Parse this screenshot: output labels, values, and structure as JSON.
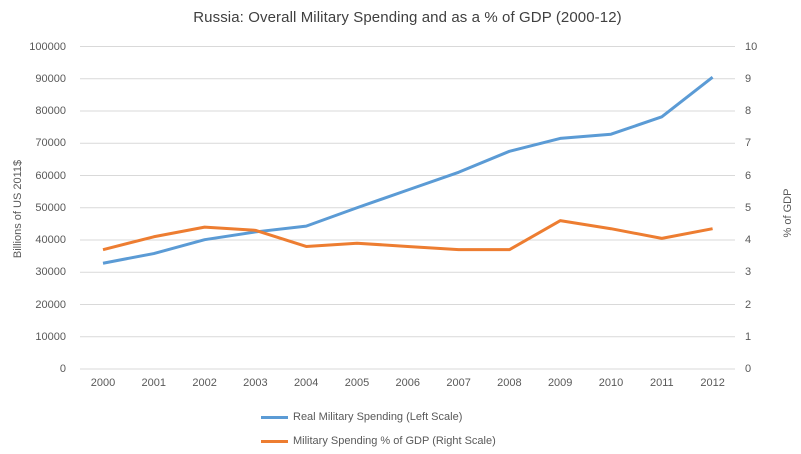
{
  "title": "Russia: Overall Military Spending and as a % of GDP (2000-12)",
  "colors": {
    "series_blue": "#5B9BD5",
    "series_orange": "#ED7D31",
    "gridline": "#D9D9D9",
    "axis_text": "#595959",
    "title_text": "#404040",
    "background": "#FFFFFF"
  },
  "left_axis": {
    "label": "Billions of US 2011$",
    "ticks": [
      "0",
      "10000",
      "20000",
      "30000",
      "40000",
      "50000",
      "60000",
      "70000",
      "80000",
      "90000",
      "100000"
    ]
  },
  "right_axis": {
    "label": "% of GDP",
    "ticks": [
      "0",
      "1",
      "2",
      "3",
      "4",
      "5",
      "6",
      "7",
      "8",
      "9",
      "10"
    ]
  },
  "x_axis": {
    "categories": [
      "2000",
      "2001",
      "2002",
      "2003",
      "2004",
      "2005",
      "2006",
      "2007",
      "2008",
      "2009",
      "2010",
      "2011",
      "2012"
    ]
  },
  "legend": {
    "items": [
      {
        "label": "Real Military Spending (Left Scale)",
        "color_key": "series_blue"
      },
      {
        "label": "Military Spending % of GDP (Right Scale)",
        "color_key": "series_orange"
      }
    ]
  },
  "chart_data": {
    "type": "line",
    "title": "Russia: Overall Military Spending and as a % of GDP (2000-12)",
    "categories": [
      "2000",
      "2001",
      "2002",
      "2003",
      "2004",
      "2005",
      "2006",
      "2007",
      "2008",
      "2009",
      "2010",
      "2011",
      "2012"
    ],
    "series": [
      {
        "name": "Real Military Spending (Left Scale)",
        "axis": "left",
        "color": "#5B9BD5",
        "values": [
          32800,
          35800,
          40100,
          42500,
          44300,
          50000,
          55500,
          61000,
          67500,
          71500,
          72800,
          78200,
          90500
        ]
      },
      {
        "name": "Military Spending % of GDP (Right Scale)",
        "axis": "right",
        "color": "#ED7D31",
        "values": [
          3.7,
          4.1,
          4.4,
          4.3,
          3.8,
          3.9,
          3.8,
          3.7,
          3.7,
          4.6,
          4.35,
          4.05,
          4.35
        ]
      }
    ],
    "left_ylabel": "Billions of US 2011$",
    "right_ylabel": "% of GDP",
    "left_ylim": [
      0,
      100000
    ],
    "right_ylim": [
      0,
      10
    ],
    "left_step": 10000,
    "right_step": 1,
    "grid": true,
    "legend_position": "bottom"
  }
}
